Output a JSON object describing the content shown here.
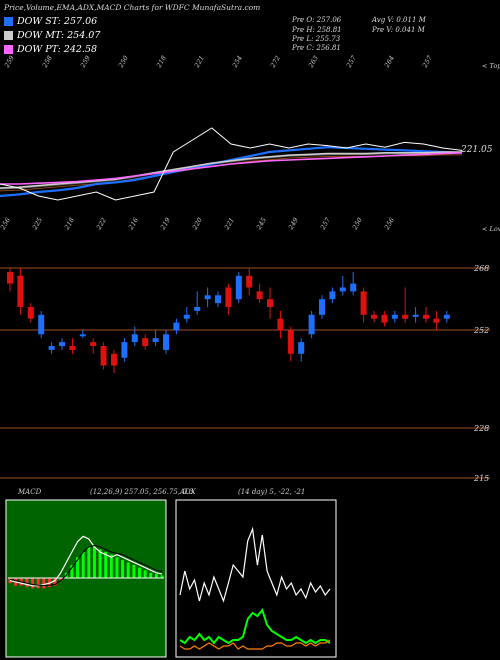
{
  "header": {
    "title": "Price,Volume,EMA,ADX,MACD Charts for WDFC MunafaSutra.com",
    "legend": [
      {
        "label": "DOW ST: 257.06",
        "color": "#1f6fff"
      },
      {
        "label": "DOW MT: 254.07",
        "color": "#cccccc"
      },
      {
        "label": "DOW PT: 242.58",
        "color": "#ff66ff"
      }
    ],
    "ohlc": {
      "open": "Pre  O: 257.06",
      "high": "Pre  H: 258.81",
      "low": "Pre  L: 255.73",
      "close": "Pre  C: 256.81",
      "avg_vol": "Avg V: 0.011 M",
      "vol": "Pre  V: 0.041 M"
    }
  },
  "top_panel": {
    "top_label": "< Tops",
    "low_label": "< Lows",
    "price_label": "221.05",
    "top_ticks": [
      "259",
      "258",
      "259",
      "250",
      "218",
      "221",
      "254",
      "272",
      "263",
      "257",
      "264",
      "257"
    ],
    "low_ticks": [
      "256",
      "225",
      "218",
      "222",
      "216",
      "219",
      "220",
      "221",
      "245",
      "249",
      "257",
      "250",
      "256"
    ]
  },
  "candle_panel": {
    "levels": [
      "268",
      "252",
      "228",
      "215"
    ]
  },
  "macd_panel": {
    "label": "MACD",
    "params": "(12,26,9) 257.05,  256.75,  0.3"
  },
  "adx_panel": {
    "label": "ADX",
    "params": "(14 day) 5,  -22,  -21"
  },
  "chart_data": [
    {
      "type": "line",
      "name": "price-ema-panel",
      "series": [
        {
          "name": "DOW ST",
          "color": "#1f6fff",
          "values": [
            0.05,
            0.07,
            0.1,
            0.12,
            0.15,
            0.2,
            0.22,
            0.25,
            0.3,
            0.35,
            0.4,
            0.45,
            0.5,
            0.55,
            0.6,
            0.62,
            0.64,
            0.66,
            0.65,
            0.64,
            0.63,
            0.62,
            0.61,
            0.6,
            0.59
          ]
        },
        {
          "name": "DOW MT",
          "color": "#cccccc",
          "values": [
            0.15,
            0.16,
            0.18,
            0.2,
            0.22,
            0.24,
            0.26,
            0.3,
            0.34,
            0.38,
            0.42,
            0.46,
            0.49,
            0.52,
            0.54,
            0.56,
            0.57,
            0.58,
            0.58,
            0.58,
            0.59,
            0.59,
            0.59,
            0.6,
            0.6
          ]
        },
        {
          "name": "DOW PT",
          "color": "#ff66ff",
          "values": [
            0.2,
            0.2,
            0.21,
            0.22,
            0.23,
            0.25,
            0.27,
            0.3,
            0.33,
            0.36,
            0.39,
            0.42,
            0.45,
            0.47,
            0.49,
            0.5,
            0.51,
            0.52,
            0.53,
            0.54,
            0.55,
            0.56,
            0.57,
            0.58,
            0.59
          ]
        }
      ],
      "price": [
        0.2,
        0.15,
        0.05,
        0.0,
        0.05,
        0.1,
        0.0,
        0.05,
        0.1,
        0.6,
        0.75,
        0.9,
        0.7,
        0.65,
        0.7,
        0.65,
        0.7,
        0.68,
        0.65,
        0.7,
        0.66,
        0.72,
        0.7,
        0.65,
        0.62
      ]
    },
    {
      "type": "candlestick",
      "name": "candles",
      "candles": [
        {
          "o": 264,
          "c": 267,
          "h": 268,
          "l": 262,
          "up": false
        },
        {
          "o": 266,
          "c": 258,
          "h": 268,
          "l": 256,
          "up": false
        },
        {
          "o": 258,
          "c": 255,
          "h": 259,
          "l": 254,
          "up": false
        },
        {
          "o": 256,
          "c": 251,
          "h": 257,
          "l": 250,
          "up": true
        },
        {
          "o": 248,
          "c": 247,
          "h": 249,
          "l": 246,
          "up": true
        },
        {
          "o": 249,
          "c": 248,
          "h": 250,
          "l": 247,
          "up": true
        },
        {
          "o": 248,
          "c": 247,
          "h": 250,
          "l": 246,
          "up": false
        },
        {
          "o": 251,
          "c": 251,
          "h": 252,
          "l": 250,
          "up": true
        },
        {
          "o": 249,
          "c": 248,
          "h": 250,
          "l": 246,
          "up": false
        },
        {
          "o": 248,
          "c": 243,
          "h": 249,
          "l": 242,
          "up": false
        },
        {
          "o": 246,
          "c": 243,
          "h": 247,
          "l": 241,
          "up": false
        },
        {
          "o": 245,
          "c": 249,
          "h": 250,
          "l": 244,
          "up": true
        },
        {
          "o": 251,
          "c": 249,
          "h": 253,
          "l": 248,
          "up": true
        },
        {
          "o": 250,
          "c": 248,
          "h": 251,
          "l": 247,
          "up": false
        },
        {
          "o": 250,
          "c": 249,
          "h": 252,
          "l": 248,
          "up": true
        },
        {
          "o": 247,
          "c": 251,
          "h": 252,
          "l": 246,
          "up": true
        },
        {
          "o": 252,
          "c": 254,
          "h": 255,
          "l": 251,
          "up": true
        },
        {
          "o": 255,
          "c": 256,
          "h": 258,
          "l": 254,
          "up": true
        },
        {
          "o": 257,
          "c": 258,
          "h": 262,
          "l": 256,
          "up": true
        },
        {
          "o": 260,
          "c": 261,
          "h": 263,
          "l": 258,
          "up": true
        },
        {
          "o": 259,
          "c": 261,
          "h": 262,
          "l": 258,
          "up": true
        },
        {
          "o": 263,
          "c": 258,
          "h": 264,
          "l": 256,
          "up": false
        },
        {
          "o": 260,
          "c": 266,
          "h": 267,
          "l": 259,
          "up": true
        },
        {
          "o": 266,
          "c": 263,
          "h": 268,
          "l": 261,
          "up": false
        },
        {
          "o": 262,
          "c": 260,
          "h": 264,
          "l": 259,
          "up": false
        },
        {
          "o": 260,
          "c": 258,
          "h": 263,
          "l": 255,
          "up": false
        },
        {
          "o": 255,
          "c": 252,
          "h": 257,
          "l": 250,
          "up": false
        },
        {
          "o": 252,
          "c": 246,
          "h": 253,
          "l": 244,
          "up": false
        },
        {
          "o": 246,
          "c": 249,
          "h": 250,
          "l": 244,
          "up": true
        },
        {
          "o": 251,
          "c": 256,
          "h": 257,
          "l": 250,
          "up": true
        },
        {
          "o": 256,
          "c": 260,
          "h": 261,
          "l": 255,
          "up": true
        },
        {
          "o": 260,
          "c": 262,
          "h": 263,
          "l": 259,
          "up": true
        },
        {
          "o": 262,
          "c": 263,
          "h": 266,
          "l": 261,
          "up": true
        },
        {
          "o": 262,
          "c": 264,
          "h": 267,
          "l": 261,
          "up": true
        },
        {
          "o": 262,
          "c": 256,
          "h": 263,
          "l": 254,
          "up": false
        },
        {
          "o": 256,
          "c": 255,
          "h": 257,
          "l": 254,
          "up": false
        },
        {
          "o": 256,
          "c": 254,
          "h": 257,
          "l": 253,
          "up": false
        },
        {
          "o": 255,
          "c": 256,
          "h": 257,
          "l": 254,
          "up": true
        },
        {
          "o": 256,
          "c": 255,
          "h": 263,
          "l": 254,
          "up": false
        },
        {
          "o": 256,
          "c": 256,
          "h": 258,
          "l": 254,
          "up": true
        },
        {
          "o": 256,
          "c": 255,
          "h": 258,
          "l": 254,
          "up": false
        },
        {
          "o": 255,
          "c": 254,
          "h": 257,
          "l": 252,
          "up": false
        },
        {
          "o": 255,
          "c": 256,
          "h": 257,
          "l": 254,
          "up": true
        }
      ]
    },
    {
      "type": "area",
      "name": "macd",
      "histogram": [
        -2,
        -3,
        -3,
        -3.5,
        -4,
        -4,
        -4,
        -3.5,
        -3,
        -1,
        2,
        5,
        8,
        10,
        12,
        12,
        11,
        10,
        9,
        8,
        7,
        6,
        5,
        4,
        3,
        2,
        1.5,
        1
      ],
      "macd": [
        -1,
        -1.5,
        -2,
        -2.5,
        -3,
        -3,
        -2.5,
        -2,
        -1,
        2,
        6,
        10,
        14,
        16,
        15,
        12,
        10,
        9,
        8,
        9,
        8,
        7,
        6,
        5,
        4,
        3,
        2,
        1.5
      ],
      "signal": [
        -0.5,
        -1,
        -1.5,
        -2,
        -2.5,
        -2.8,
        -2.9,
        -2.8,
        -2.5,
        -1,
        1,
        4,
        7,
        10,
        12,
        12.5,
        12,
        11,
        10,
        9.5,
        9,
        8,
        7,
        6,
        5,
        4,
        3,
        2.5
      ]
    },
    {
      "type": "line",
      "name": "adx",
      "series": [
        {
          "name": "ADX",
          "color": "#ffffff",
          "values": [
            20,
            28,
            22,
            25,
            18,
            24,
            20,
            26,
            22,
            18,
            24,
            30,
            28,
            26,
            38,
            42,
            30,
            40,
            28,
            24,
            20,
            26,
            22,
            24,
            20,
            22,
            19,
            24,
            21,
            23,
            20,
            22
          ]
        },
        {
          "name": "+DI",
          "color": "#00ff00",
          "values": [
            5,
            4,
            6,
            5,
            7,
            5,
            6,
            4,
            6,
            5,
            4,
            5,
            5,
            6,
            12,
            14,
            13,
            15,
            10,
            8,
            7,
            6,
            5,
            5,
            6,
            5,
            4,
            5,
            4,
            5,
            5,
            4
          ]
        },
        {
          "name": "-DI",
          "color": "#ff8000",
          "values": [
            3,
            2,
            2,
            3,
            2,
            3,
            4,
            3,
            2,
            3,
            3,
            4,
            2,
            3,
            2,
            2,
            2,
            2,
            3,
            3,
            4,
            4,
            3,
            3,
            4,
            4,
            3,
            4,
            3,
            4,
            4,
            5
          ]
        }
      ]
    }
  ]
}
